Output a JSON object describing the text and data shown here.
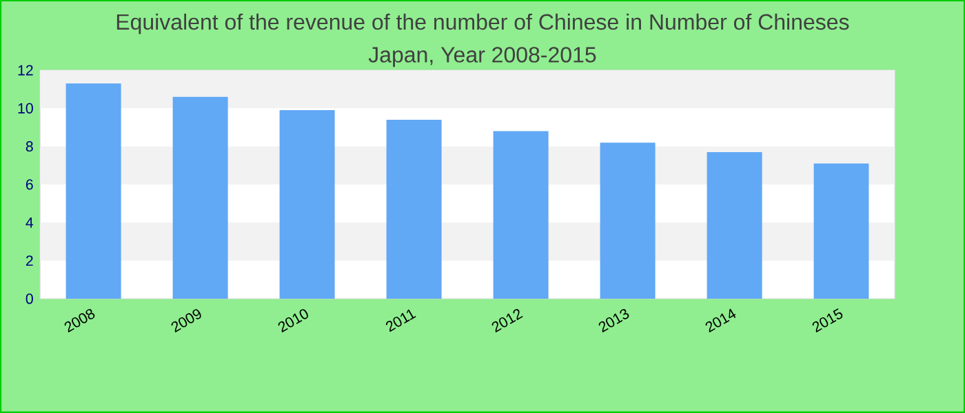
{
  "chart_data": {
    "type": "bar",
    "title": "Equivalent of the revenue of the number of Chinese  in Number of Chineses",
    "subtitle": "Japan, Year 2008-2015",
    "categories": [
      "2008",
      "2009",
      "2010",
      "2011",
      "2012",
      "2013",
      "2014",
      "2015"
    ],
    "values": [
      11.3,
      10.6,
      9.9,
      9.4,
      8.8,
      8.2,
      7.7,
      7.1
    ],
    "color": "#61a8f5",
    "ylim": [
      0,
      12
    ],
    "yticks": [
      0,
      2,
      4,
      6,
      8,
      10,
      12
    ],
    "bands": [
      {
        "axis": "y",
        "from": 10,
        "to": 12,
        "color": "#f2f2f2"
      },
      {
        "axis": "y",
        "from": 6,
        "to": 8,
        "color": "#f2f2f2"
      },
      {
        "axis": "y",
        "from": 2,
        "to": 4,
        "color": "#f2f2f2"
      }
    ]
  }
}
